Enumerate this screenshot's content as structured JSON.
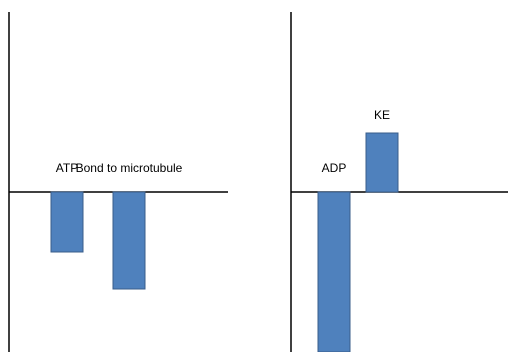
{
  "chart_data": [
    {
      "type": "bar",
      "categories": [
        "ATP",
        "Bond to microtubule"
      ],
      "values": [
        -60,
        -97
      ],
      "title": "",
      "xlabel": "",
      "ylabel": "",
      "ylim": [
        -160,
        180
      ],
      "grid": false,
      "legend": "none",
      "data_labels": true
    },
    {
      "type": "bar",
      "categories": [
        "ADP",
        "KE"
      ],
      "values": [
        -160,
        59
      ],
      "title": "",
      "xlabel": "",
      "ylabel": "",
      "ylim": [
        -160,
        180
      ],
      "grid": false,
      "legend": "none",
      "data_labels": true
    }
  ],
  "colors": {
    "bar_fill": "#4f81bd",
    "bar_stroke": "#385d8a",
    "axis": "#000000"
  }
}
